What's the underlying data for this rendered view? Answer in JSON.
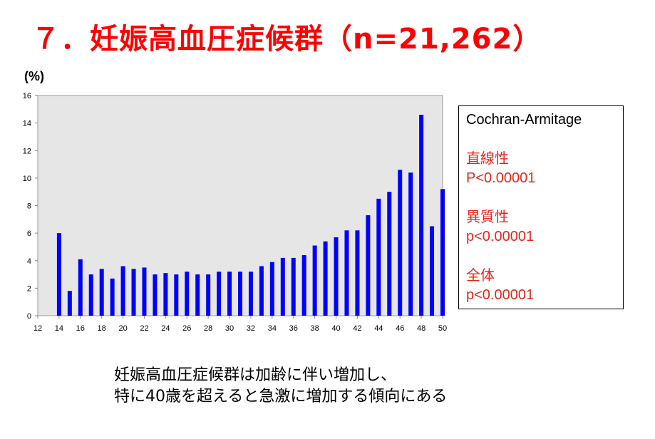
{
  "slide": {
    "title": "７．妊娠高血圧症候群（n=21,262）"
  },
  "chart_data": {
    "type": "bar",
    "title": "",
    "xlabel": "",
    "ylabel": "(%)",
    "ylim": [
      0,
      16
    ],
    "xlim": [
      12,
      50
    ],
    "yticks": [
      0,
      2,
      4,
      6,
      8,
      10,
      12,
      14,
      16
    ],
    "xticks": [
      12,
      14,
      16,
      18,
      20,
      22,
      24,
      26,
      28,
      30,
      32,
      34,
      36,
      38,
      40,
      42,
      44,
      46,
      48,
      50
    ],
    "grid": false,
    "plot_background": "#e6e6e6",
    "bar_color": "#0000ff",
    "x": [
      14,
      15,
      16,
      17,
      18,
      19,
      20,
      21,
      22,
      23,
      24,
      25,
      26,
      27,
      28,
      29,
      30,
      31,
      32,
      33,
      34,
      35,
      36,
      37,
      38,
      39,
      40,
      41,
      42,
      43,
      44,
      45,
      46,
      47,
      48,
      49,
      50
    ],
    "values": [
      6.0,
      1.8,
      4.1,
      3.0,
      3.4,
      2.7,
      3.6,
      3.4,
      3.5,
      3.0,
      3.1,
      3.0,
      3.2,
      3.0,
      3.0,
      3.2,
      3.2,
      3.2,
      3.2,
      3.6,
      3.9,
      4.2,
      4.2,
      4.4,
      5.1,
      5.4,
      5.7,
      6.2,
      6.2,
      7.3,
      8.5,
      9.0,
      10.6,
      10.4,
      14.6,
      6.5,
      9.2
    ]
  },
  "stats_box": {
    "method": "Cochran-Armitage",
    "groups": [
      {
        "label": "直線性",
        "value": "P<0.00001"
      },
      {
        "label": "異質性",
        "value": "p<0.00001"
      },
      {
        "label": "全体",
        "value": "p<0.00001"
      }
    ],
    "accent_color": "#e8261b"
  },
  "conclusion": {
    "line1": "妊娠高血圧症候群は加齢に伴い増加し、",
    "line2": "特に40歳を超えると急激に増加する傾向にある"
  }
}
